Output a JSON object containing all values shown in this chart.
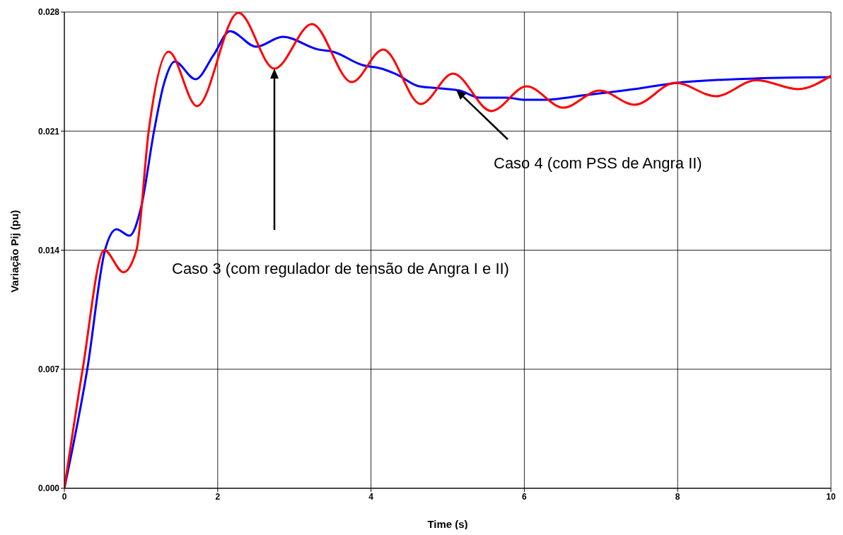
{
  "chart_data": {
    "type": "line",
    "xlabel": "Time (s)",
    "ylabel": "Variação Pij (pu)",
    "xlim": [
      0,
      10
    ],
    "xticks": [
      0,
      2,
      4,
      6,
      8,
      10
    ],
    "ylim": [
      0,
      0.028
    ],
    "yticks": [
      {
        "value": 0,
        "label": "0.000"
      },
      {
        "value": 0.007,
        "label": "0.007"
      },
      {
        "value": 0.014,
        "label": "0.014"
      },
      {
        "value": 0.021,
        "label": "0.021"
      },
      {
        "value": 0.028,
        "label": "0.028"
      }
    ],
    "grid": true,
    "marker": "none",
    "line_style": "solid",
    "series": [
      {
        "color": "#0000ff",
        "x": [
          0,
          0.3,
          0.53,
          0.68,
          0.85,
          1.0,
          1.17,
          1.3,
          1.44,
          1.71,
          1.95,
          2.16,
          2.5,
          2.85,
          3.31,
          3.5,
          3.89,
          4.14,
          4.33,
          4.63,
          4.91,
          5.16,
          5.41,
          5.77,
          6.01,
          6.26,
          6.82,
          7.5,
          8,
          9,
          10
        ],
        "values": [
          0,
          0.00703,
          0.014,
          0.01523,
          0.01485,
          0.0165,
          0.021,
          0.0238,
          0.02509,
          0.02405,
          0.0255,
          0.02688,
          0.02596,
          0.02654,
          0.0258,
          0.02567,
          0.02488,
          0.02467,
          0.02434,
          0.02363,
          0.02351,
          0.02338,
          0.02297,
          0.02297,
          0.02284,
          0.02284,
          0.02313,
          0.02351,
          0.02384,
          0.02409,
          0.02417
        ]
      },
      {
        "color": "#ff0000",
        "x": [
          0,
          0.24,
          0.52,
          0.77,
          0.94,
          1.1,
          1.36,
          1.73,
          2.27,
          2.74,
          3.23,
          3.75,
          4.16,
          4.65,
          5.07,
          5.57,
          6.03,
          6.51,
          6.98,
          7.44,
          7.97,
          8.5,
          9.03,
          9.57,
          10
        ],
        "values": [
          0,
          0.00703,
          0.014,
          0.0127,
          0.014,
          0.021,
          0.02567,
          0.02247,
          0.02796,
          0.02467,
          0.02729,
          0.02388,
          0.0258,
          0.02259,
          0.02438,
          0.02218,
          0.02363,
          0.02238,
          0.02338,
          0.02255,
          0.02384,
          0.02305,
          0.024,
          0.02347,
          0.02425
        ]
      }
    ],
    "annotations": [
      "Caso 3 (com regulador de tensão de Angra I e II)",
      "Caso 4 (com PSS de Angra II)"
    ]
  }
}
